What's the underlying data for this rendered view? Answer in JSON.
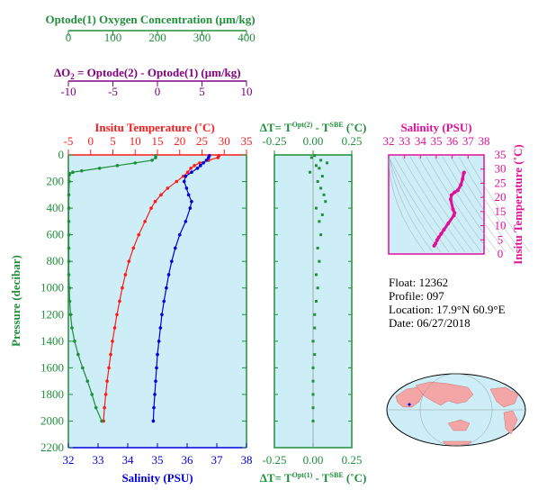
{
  "colors": {
    "oxygen": "#1f8f3a",
    "delta_o2": "#800080",
    "temperature": "#ff1a1a",
    "salinity": "#0000dd",
    "delta_t": "#1f8f3a",
    "ts_diagram": "#e0109a",
    "panel_bg": "#cdeef6",
    "axis": "#000000"
  },
  "float_info": {
    "float": "Float:  12362",
    "profile": "Profile:  097",
    "location": "Location:  17.9°N  60.9°E",
    "date": "Date:  06/27/2018"
  },
  "chart_data": [
    {
      "type": "line",
      "id": "main-profile",
      "ylabel": "Pressure (decibar)",
      "ylim": [
        0,
        2200
      ],
      "yticks": [
        "0",
        "200",
        "400",
        "600",
        "800",
        "1000",
        "1200",
        "1400",
        "1600",
        "1800",
        "2000",
        "2200"
      ],
      "axes": {
        "oxygen": {
          "label": "Optode(1) Oxygen Concentration (μm/kg)",
          "lim": [
            0,
            400
          ],
          "ticks": [
            "0",
            "100",
            "200",
            "300",
            "400"
          ]
        },
        "delta_o2": {
          "label_prefix": "ΔO",
          "label_sub": "2",
          "label_rest": " = Optode(2) - Optode(1)   (μm/kg)",
          "lim": [
            -10,
            10
          ],
          "ticks": [
            "-10",
            "-5",
            "0",
            "5",
            "10"
          ]
        },
        "temperature": {
          "label": "Insitu Temperature (˚C)",
          "lim": [
            -5,
            35
          ],
          "ticks": [
            "-5",
            "0",
            "5",
            "10",
            "15",
            "20",
            "25",
            "30",
            "35"
          ]
        },
        "salinity": {
          "label": "Salinity (PSU)",
          "lim": [
            32,
            38
          ],
          "ticks": [
            "32",
            "33",
            "34",
            "35",
            "36",
            "37",
            "38"
          ]
        }
      },
      "series": [
        {
          "key": "temperature",
          "pressure": [
            5,
            20,
            40,
            60,
            80,
            100,
            130,
            160,
            200,
            250,
            300,
            350,
            400,
            500,
            600,
            700,
            800,
            900,
            1000,
            1100,
            1200,
            1300,
            1400,
            1500,
            1600,
            1700,
            1800,
            1900,
            2000
          ],
          "values": [
            28.8,
            28.6,
            26.5,
            24.5,
            23.3,
            22.5,
            21.8,
            20.8,
            19.3,
            17.3,
            15.8,
            14.5,
            13.6,
            12.2,
            10.8,
            9.6,
            8.6,
            7.8,
            7.1,
            6.5,
            5.9,
            5.4,
            4.9,
            4.5,
            4.1,
            3.7,
            3.4,
            3.1,
            2.9
          ]
        },
        {
          "key": "salinity",
          "pressure": [
            5,
            20,
            40,
            60,
            80,
            100,
            130,
            160,
            200,
            250,
            300,
            350,
            400,
            500,
            600,
            700,
            800,
            900,
            1000,
            1100,
            1200,
            1300,
            1400,
            1500,
            1600,
            1700,
            1800,
            1900,
            2000
          ],
          "values": [
            36.75,
            36.72,
            36.65,
            36.55,
            36.45,
            36.35,
            36.15,
            35.95,
            35.9,
            35.98,
            36.05,
            36.15,
            36.1,
            35.95,
            35.75,
            35.6,
            35.48,
            35.38,
            35.3,
            35.22,
            35.15,
            35.1,
            35.05,
            35.0,
            34.97,
            34.94,
            34.91,
            34.88,
            34.86
          ]
        },
        {
          "key": "oxygen",
          "pressure": [
            5,
            20,
            40,
            60,
            80,
            100,
            120,
            130,
            140,
            150,
            200,
            300,
            400,
            500,
            600,
            700,
            800,
            900,
            1000,
            1100,
            1200,
            1300,
            1400,
            1500,
            1600,
            1700,
            1800,
            1900,
            2000
          ],
          "values": [
            196,
            196,
            188,
            150,
            110,
            70,
            30,
            10,
            3,
            2,
            2,
            1,
            1,
            1,
            1,
            1,
            1,
            1,
            2,
            3,
            5,
            8,
            14,
            22,
            32,
            43,
            53,
            62,
            75
          ]
        }
      ]
    },
    {
      "type": "scatter",
      "id": "delta-t",
      "top_label_prefix": "ΔT= T",
      "top_label_sup1": "Opt(2)",
      "top_label_mid": " - T",
      "top_label_sup2": "SBE",
      "top_label_unit": " (˚C)",
      "bottom_label_prefix": "ΔT= T",
      "bottom_label_sup1": "Opt(1)",
      "bottom_label_mid": " - T",
      "bottom_label_sup2": "SBE",
      "bottom_label_unit": " (˚C)",
      "xlim": [
        -0.25,
        0.25
      ],
      "ticks": [
        "-0.25",
        "0.00",
        "0.25"
      ],
      "ylim": [
        0,
        2200
      ],
      "x": [
        0.01,
        -0.01,
        0.05,
        0.09,
        0.02,
        0.04,
        -0.02,
        0.06,
        0.03,
        0.05,
        0.07,
        0.08,
        0.02,
        0.06,
        0.04,
        0.05,
        0.03,
        0.04,
        0.02,
        0.03,
        0.02,
        0.01,
        0.01,
        0.0,
        0.01,
        0.0,
        0.0,
        0.0,
        0.0,
        0.0
      ],
      "y": [
        5,
        20,
        40,
        60,
        80,
        100,
        130,
        160,
        200,
        250,
        300,
        350,
        400,
        450,
        500,
        600,
        700,
        800,
        900,
        1000,
        1100,
        1200,
        1300,
        1400,
        1500,
        1600,
        1700,
        1800,
        1900,
        2000
      ]
    },
    {
      "type": "line",
      "id": "ts-diagram",
      "title": "Salinity (PSU)",
      "ylabel": "Insitu Temperature (˚C)",
      "xlim": [
        32,
        38
      ],
      "ylim": [
        0,
        35
      ],
      "xticks": [
        "32",
        "33",
        "34",
        "35",
        "36",
        "37",
        "38"
      ],
      "yticks": [
        "0",
        "5",
        "10",
        "15",
        "20",
        "25",
        "30",
        "35"
      ],
      "x": [
        34.86,
        34.95,
        35.05,
        35.15,
        35.3,
        35.48,
        35.75,
        36.1,
        36.15,
        36.05,
        35.9,
        35.95,
        36.15,
        36.35,
        36.55,
        36.65,
        36.72,
        36.75
      ],
      "y": [
        2.9,
        3.7,
        4.9,
        5.9,
        7.1,
        8.6,
        10.8,
        13.6,
        14.5,
        15.8,
        19.3,
        20.8,
        21.8,
        22.5,
        24.5,
        26.5,
        28.6,
        28.8
      ]
    }
  ]
}
